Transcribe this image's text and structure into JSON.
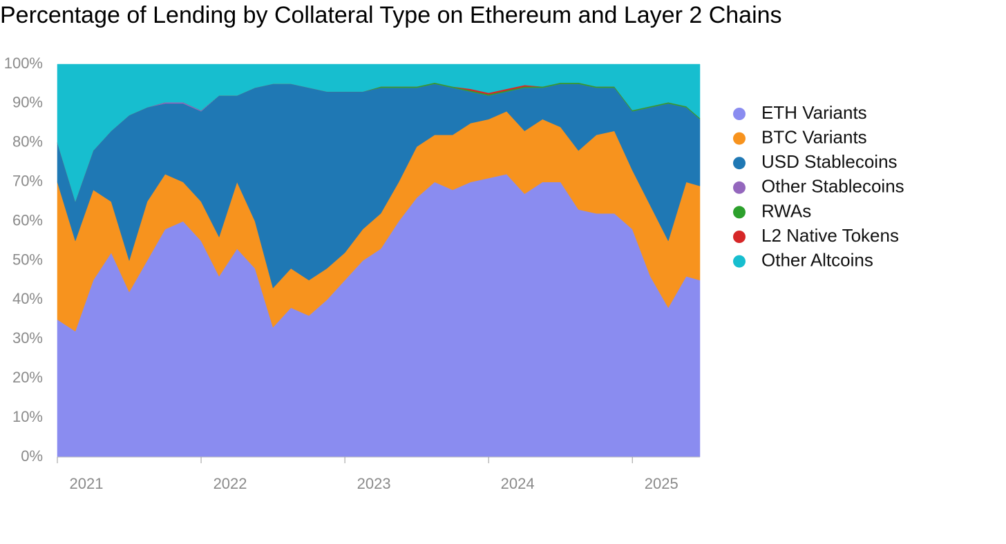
{
  "chart_data": {
    "type": "stacked-area",
    "title": "Percentage of Lending by Collateral Type on Ethereum and Layer 2 Chains",
    "x": [
      2021,
      2021.125,
      2021.25,
      2021.375,
      2021.5,
      2021.625,
      2021.75,
      2021.875,
      2022,
      2022.125,
      2022.25,
      2022.375,
      2022.5,
      2022.625,
      2022.75,
      2022.875,
      2023,
      2023.125,
      2023.25,
      2023.375,
      2023.5,
      2023.625,
      2023.75,
      2023.875,
      2024,
      2024.125,
      2024.25,
      2024.375,
      2024.5,
      2024.625,
      2024.75,
      2024.875,
      2025,
      2025.125,
      2025.25,
      2025.375,
      2025.47
    ],
    "series": [
      {
        "name": "ETH Variants",
        "color": "#8a8cf0",
        "values": [
          35,
          32,
          45,
          52,
          42,
          50,
          58,
          60,
          55,
          46,
          53,
          48,
          33,
          38,
          36,
          40,
          45,
          50,
          53,
          60,
          66,
          70,
          68,
          70,
          71,
          72,
          67,
          70,
          70,
          63,
          62,
          62,
          58,
          46,
          38,
          46,
          45
        ]
      },
      {
        "name": "BTC Variants",
        "color": "#f7931e",
        "values": [
          35,
          23,
          23,
          13,
          8,
          15,
          14,
          10,
          10,
          10,
          17,
          12,
          10,
          10,
          9,
          8,
          7,
          8,
          9,
          10,
          13,
          12,
          14,
          15,
          15,
          16,
          16,
          16,
          14,
          15,
          20,
          21,
          15,
          18,
          17,
          24,
          24
        ]
      },
      {
        "name": "USD Stablecoins",
        "color": "#1f78b4",
        "values": [
          10,
          10,
          10,
          18,
          37,
          24,
          18,
          20,
          23,
          36,
          22,
          34,
          52,
          47,
          49,
          45,
          41,
          35,
          32,
          24,
          15,
          13,
          12,
          8,
          6,
          5,
          11,
          8,
          11,
          17,
          12,
          11,
          15,
          25,
          35,
          19,
          17
        ]
      },
      {
        "name": "Other Stablecoins",
        "color": "#9467bd",
        "values": [
          0,
          0,
          0,
          0,
          0,
          0,
          0.3,
          0.3,
          0.2,
          0,
          0,
          0,
          0,
          0,
          0,
          0,
          0,
          0,
          0,
          0,
          0,
          0,
          0,
          0,
          0,
          0,
          0,
          0,
          0,
          0,
          0,
          0,
          0,
          0,
          0,
          0,
          0
        ]
      },
      {
        "name": "RWAs",
        "color": "#2ca02c",
        "values": [
          0,
          0,
          0,
          0,
          0,
          0,
          0,
          0,
          0,
          0,
          0,
          0,
          0,
          0,
          0,
          0,
          0,
          0,
          0.3,
          0.3,
          0.3,
          0.3,
          0.3,
          0.3,
          0.3,
          0.3,
          0.3,
          0.3,
          0.3,
          0.3,
          0.3,
          0.3,
          0.3,
          0.3,
          0.3,
          0.3,
          0.3
        ]
      },
      {
        "name": "L2 Native Tokens",
        "color": "#d62728",
        "values": [
          0,
          0,
          0,
          0,
          0,
          0,
          0,
          0,
          0,
          0,
          0,
          0,
          0,
          0,
          0,
          0,
          0,
          0,
          0,
          0,
          0,
          0,
          0,
          0.4,
          0.4,
          0.4,
          0.4,
          0,
          0,
          0,
          0,
          0,
          0,
          0,
          0,
          0,
          0
        ]
      },
      {
        "name": "Other Altcoins",
        "color": "#17becf",
        "values": [
          20,
          35,
          22,
          17,
          13,
          11,
          9.7,
          9.7,
          11.8,
          8,
          8,
          6,
          5,
          5,
          6,
          7,
          7,
          7,
          5.7,
          5.7,
          5.7,
          4.7,
          5.7,
          6.3,
          7.3,
          6.3,
          5.3,
          5.7,
          4.7,
          4.7,
          5.7,
          5.7,
          11.7,
          10.7,
          9.7,
          10.7,
          13.7
        ]
      }
    ],
    "xlim": [
      2021,
      2025.47
    ],
    "xticks": [
      2021,
      2022,
      2023,
      2024,
      2025
    ],
    "ylim": [
      0,
      100
    ],
    "yticks": [
      {
        "value": 0,
        "label": "0%"
      },
      {
        "value": 10,
        "label": "10%"
      },
      {
        "value": 20,
        "label": "20%"
      },
      {
        "value": 30,
        "label": "30%"
      },
      {
        "value": 40,
        "label": "40%"
      },
      {
        "value": 50,
        "label": "50%"
      },
      {
        "value": 60,
        "label": "60%"
      },
      {
        "value": 70,
        "label": "70%"
      },
      {
        "value": 80,
        "label": "80%"
      },
      {
        "value": 90,
        "label": "90%"
      },
      {
        "value": 100,
        "label": "100%"
      }
    ],
    "legend": "right"
  }
}
